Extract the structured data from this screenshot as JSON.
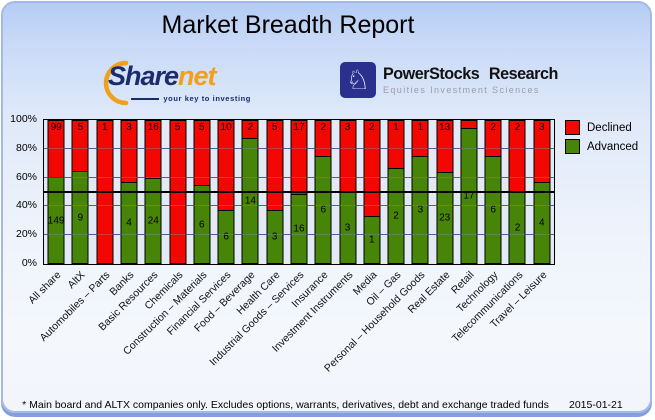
{
  "title": "Market Breadth Report",
  "logos": {
    "sharenet": {
      "part1": "Share",
      "part2": "net",
      "tagline": "your key to investing",
      "navy": "#1c2b6e",
      "orange": "#f0a11c"
    },
    "powerstocks": {
      "name": "PowerStocks Research",
      "subtitle": "Equities Investment Sciences",
      "knight_icon": "♘",
      "square_color": "#2b2f8e"
    }
  },
  "legend": [
    {
      "label": "Declined",
      "color": "#f20800"
    },
    {
      "label": "Advanced",
      "color": "#478509"
    }
  ],
  "footer": {
    "note": "* Main board and ALTX companies only. Excludes options, warrants, derivatives, debt and exchange traded funds",
    "date": "2015-01-21"
  },
  "chart_data": {
    "type": "bar",
    "stacked": true,
    "normalized_to_percent": true,
    "title": "Market Breadth Report",
    "categories": [
      "All share",
      "AltX",
      "Automobiles – Parts",
      "Banks",
      "Basic Resources",
      "Chemicals",
      "Construction – Materials",
      "Financial Services",
      "Food – Beverage",
      "Health Care",
      "Industrial Goods – Services",
      "Insurance",
      "Investment Instruments",
      "Media",
      "Oil – Gas",
      "Personal – Household Goods",
      "Real Estate",
      "Retail",
      "Technology",
      "Telecommunications",
      "Travel – Leisure"
    ],
    "series": [
      {
        "name": "Declined",
        "color": "#f20800",
        "values": [
          99,
          5,
          1,
          3,
          16,
          5,
          5,
          10,
          2,
          5,
          17,
          2,
          3,
          2,
          1,
          1,
          13,
          1,
          2,
          2,
          3
        ],
        "labels": [
          "99",
          "5",
          "1",
          "3",
          "16",
          "5",
          "5",
          "10",
          "2",
          "5",
          "17",
          "2",
          "3",
          "2",
          "1",
          "1",
          "13",
          "",
          "2",
          "2",
          "3"
        ]
      },
      {
        "name": "Advanced",
        "color": "#478509",
        "values": [
          149,
          9,
          0,
          4,
          24,
          0,
          6,
          6,
          14,
          3,
          16,
          6,
          3,
          1,
          2,
          3,
          23,
          17,
          6,
          2,
          4
        ],
        "labels": [
          "149",
          "9",
          "",
          "4",
          "24",
          "",
          "6",
          "6",
          "14",
          "3",
          "16",
          "6",
          "3",
          "1",
          "2",
          "3",
          "23",
          "17",
          "6",
          "2",
          "4"
        ]
      }
    ],
    "y_ticks": [
      "100%",
      "80%",
      "60%",
      "40%",
      "20%",
      "0%"
    ],
    "ylim": [
      0,
      100
    ],
    "gridlines_percent": [
      20,
      40,
      60,
      80
    ],
    "reference_line_percent": 50,
    "legend_position": "right",
    "x_label_rotation_deg": 45
  }
}
